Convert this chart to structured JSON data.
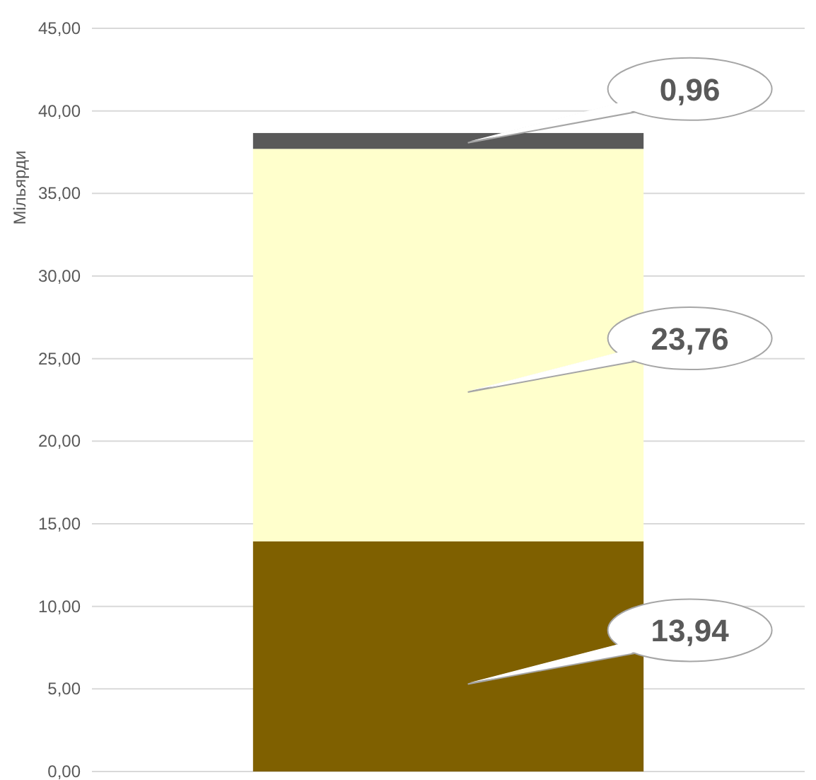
{
  "chart_data": {
    "type": "bar",
    "stacked": true,
    "ylabel": "Мільярди",
    "categories": [
      null
    ],
    "series": [
      {
        "color": "#7f6000",
        "values": [
          13.94
        ],
        "value_labels": [
          "13,94"
        ]
      },
      {
        "color": "#ffffcc",
        "values": [
          23.76
        ],
        "value_labels": [
          "23,76"
        ]
      },
      {
        "color": "#595959",
        "values": [
          0.96
        ],
        "value_labels": [
          "0,96"
        ]
      }
    ],
    "ylim": [
      0,
      45
    ],
    "yticks": [
      {
        "value": 0,
        "label": "0,00"
      },
      {
        "value": 5,
        "label": "5,00"
      },
      {
        "value": 10,
        "label": "10,00"
      },
      {
        "value": 15,
        "label": "15,00"
      },
      {
        "value": 20,
        "label": "20,00"
      },
      {
        "value": 25,
        "label": "25,00"
      },
      {
        "value": 30,
        "label": "30,00"
      },
      {
        "value": 35,
        "label": "35,00"
      },
      {
        "value": 40,
        "label": "40,00"
      },
      {
        "value": 45,
        "label": "45,00"
      }
    ],
    "grid": true
  }
}
